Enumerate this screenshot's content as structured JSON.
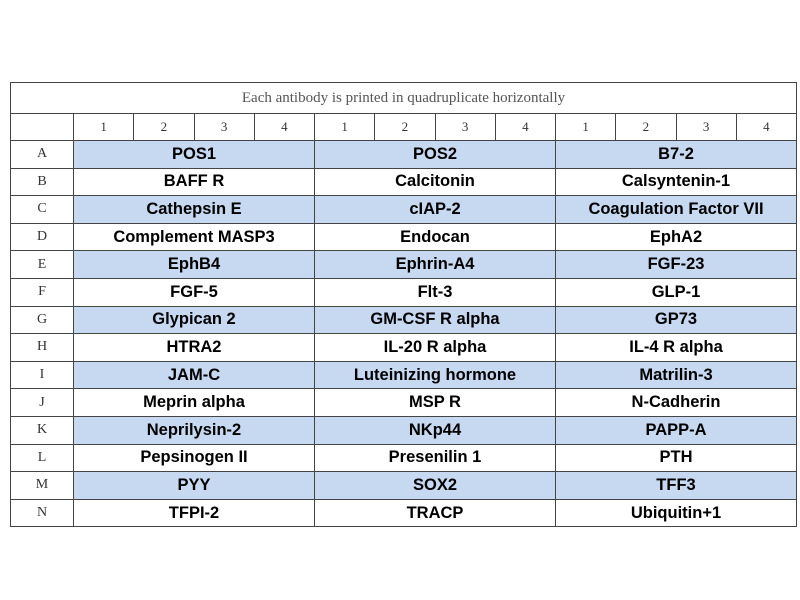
{
  "header": {
    "title": "Each antibody is printed in quadruplicate horizontally",
    "columns": [
      "1",
      "2",
      "3",
      "4",
      "1",
      "2",
      "3",
      "4",
      "1",
      "2",
      "3",
      "4"
    ]
  },
  "table": {
    "rows": [
      {
        "label": "A",
        "cells": [
          "POS1",
          "POS2",
          "B7-2"
        ]
      },
      {
        "label": "B",
        "cells": [
          "BAFF R",
          "Calcitonin",
          "Calsyntenin-1"
        ]
      },
      {
        "label": "C",
        "cells": [
          "Cathepsin E",
          "cIAP-2",
          "Coagulation Factor VII"
        ]
      },
      {
        "label": "D",
        "cells": [
          "Complement MASP3",
          "Endocan",
          "EphA2"
        ]
      },
      {
        "label": "E",
        "cells": [
          "EphB4",
          "Ephrin-A4",
          "FGF-23"
        ]
      },
      {
        "label": "F",
        "cells": [
          "FGF-5",
          "Flt-3",
          "GLP-1"
        ]
      },
      {
        "label": "G",
        "cells": [
          "Glypican 2",
          "GM-CSF R alpha",
          "GP73"
        ]
      },
      {
        "label": "H",
        "cells": [
          "HTRA2",
          "IL-20 R alpha",
          "IL-4 R alpha"
        ]
      },
      {
        "label": "I",
        "cells": [
          "JAM-C",
          "Luteinizing hormone",
          "Matrilin-3"
        ]
      },
      {
        "label": "J",
        "cells": [
          "Meprin alpha",
          "MSP R",
          "N-Cadherin"
        ]
      },
      {
        "label": "K",
        "cells": [
          "Neprilysin-2",
          "NKp44",
          "PAPP-A"
        ]
      },
      {
        "label": "L",
        "cells": [
          "Pepsinogen II",
          "Presenilin 1",
          "PTH"
        ]
      },
      {
        "label": "M",
        "cells": [
          "PYY",
          "SOX2",
          "TFF3"
        ]
      },
      {
        "label": "N",
        "cells": [
          "TFPI-2",
          "TRACP",
          "Ubiquitin+1"
        ]
      }
    ]
  }
}
